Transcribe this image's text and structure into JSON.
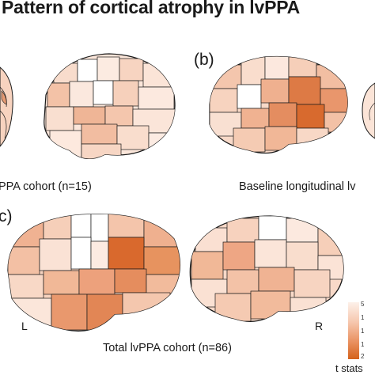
{
  "figure": {
    "title": "Pattern of cortical atrophy in lvPPA",
    "panels": [
      {
        "label": "",
        "caption": "PPA cohort (n=15)"
      },
      {
        "label": "(b)",
        "caption": "Baseline longitudinal lv"
      },
      {
        "label": "c)",
        "caption": "Total lvPPA cohort (n=86)",
        "left_hemisphere": "L",
        "right_hemisphere": "R"
      }
    ],
    "legend": {
      "title": "t stats",
      "ticks": [
        "5",
        "1",
        "1",
        "1",
        "2"
      ]
    },
    "colors": {
      "low": "#fdf1ea",
      "mid": "#f0a987",
      "high": "#d4621c",
      "outline": "#1a1a1a"
    }
  }
}
